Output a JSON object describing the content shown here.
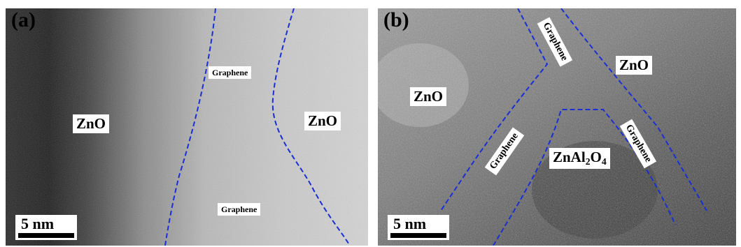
{
  "panel_a": {
    "label": "(a)",
    "regions": {
      "zno_left": "ZnO",
      "zno_right": "ZnO",
      "graphene_top": "Graphene",
      "graphene_bottom": "Graphene"
    },
    "scale_bar": "5 nm"
  },
  "panel_b": {
    "label": "(b)",
    "regions": {
      "zno_left": "ZnO",
      "zno_right": "ZnO",
      "graphene_top": "Graphene",
      "graphene_left": "Graphene",
      "graphene_right": "Graphene",
      "spinel_base": "ZnAl",
      "spinel_sub1": "2",
      "spinel_mid": "O",
      "spinel_sub2": "4"
    },
    "scale_bar": "5 nm"
  },
  "colors": {
    "boundary_line": "#1a2ed6"
  }
}
